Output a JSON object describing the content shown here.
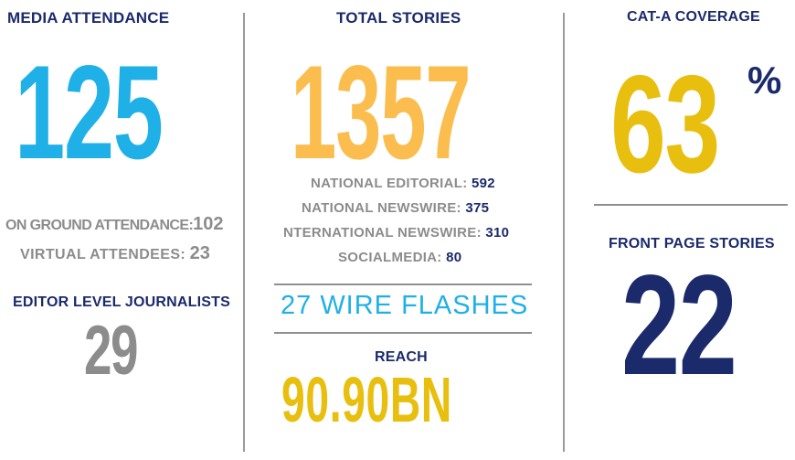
{
  "left": {
    "heading": "MEDIA ATTENDANCE",
    "value": "125",
    "on_ground_label": "ON GROUND ATTENDANCE:",
    "on_ground_value": "102",
    "virtual_label": "VIRTUAL ATTENDEES:",
    "virtual_value": "23",
    "editor_heading": "EDITOR LEVEL JOURNALISTS",
    "editor_value": "29"
  },
  "middle": {
    "heading": "TOTAL STORIES",
    "value": "1357",
    "breakdown": [
      {
        "label": "NATIONAL EDITORIAL:",
        "value": "592"
      },
      {
        "label": "NATIONAL NEWSWIRE:",
        "value": "375"
      },
      {
        "label": "NTERNATIONAL NEWSWIRE:",
        "value": "310"
      },
      {
        "label": "SOCIALMEDIA:",
        "value": "80"
      }
    ],
    "wire_flashes": "27 WIRE FLASHES",
    "reach_heading": "REACH",
    "reach_value": "90.90BN"
  },
  "right": {
    "heading": "CAT-A COVERAGE",
    "value": "63",
    "unit": "%",
    "front_page_heading": "FRONT PAGE STORIES",
    "front_page_value": "22"
  },
  "colors": {
    "navy": "#1b2a6b",
    "blue": "#1fb0e8",
    "orange": "#fbbd4e",
    "yellow": "#e8bf0f",
    "gray": "#8c8c8c"
  }
}
